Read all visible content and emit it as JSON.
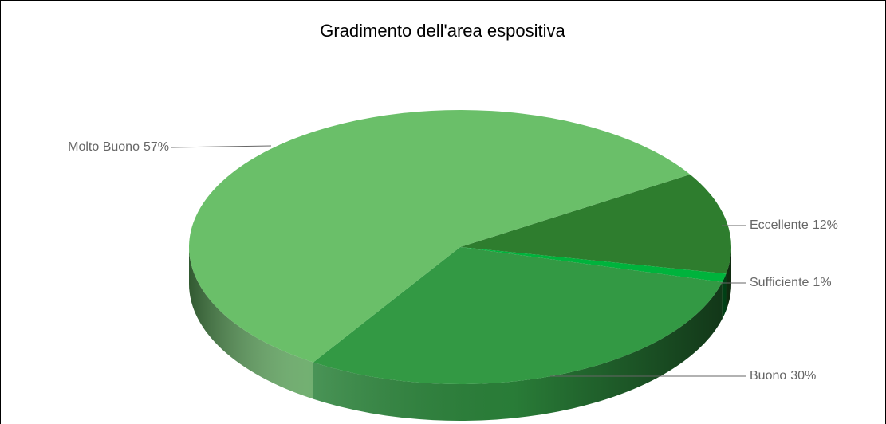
{
  "chart_data": {
    "type": "pie",
    "title": "Gradimento dell'area espositiva",
    "categories": [
      "Eccellente",
      "Sufficiente",
      "Buono",
      "Molto Buono"
    ],
    "values": [
      12,
      1,
      30,
      57
    ],
    "value_labels": [
      "12%",
      "1%",
      "30%",
      "57%"
    ],
    "colors": [
      "#2e7d2e",
      "#00b33c",
      "#339944",
      "#6abf69"
    ]
  }
}
